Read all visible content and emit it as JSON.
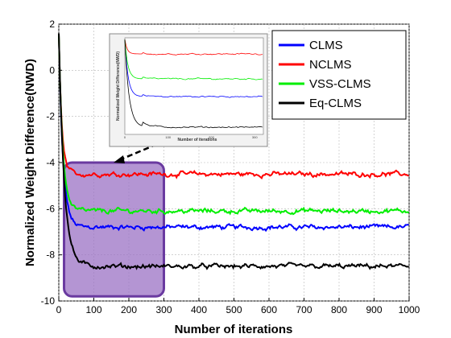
{
  "chart_data": {
    "type": "line",
    "title": "",
    "xlabel": "Number of iterations",
    "ylabel": "Normalized Weight Difference(NWD)",
    "xlim": [
      0,
      1000
    ],
    "ylim": [
      -10,
      2
    ],
    "xticks": [
      0,
      100,
      200,
      300,
      400,
      500,
      600,
      700,
      800,
      900,
      1000
    ],
    "yticks": [
      -10,
      -8,
      -6,
      -4,
      -2,
      0,
      2
    ],
    "grid": true,
    "legend_position": "top-right",
    "series": [
      {
        "name": "CLMS",
        "color": "#0000ff",
        "start": 1.6,
        "steady": -6.8,
        "rate": 0.085
      },
      {
        "name": "NCLMS",
        "color": "#ff0000",
        "start": 1.6,
        "steady": -4.5,
        "rate": 0.12
      },
      {
        "name": "VSS-CLMS",
        "color": "#00ee00",
        "start": 1.6,
        "steady": -6.1,
        "rate": 0.09
      },
      {
        "name": "Eq-CLMS",
        "color": "#000000",
        "start": 1.6,
        "steady": -8.5,
        "rate": 0.065
      }
    ],
    "highlight_box": {
      "x": [
        15,
        300
      ],
      "y": [
        -9.8,
        -4.0
      ],
      "fill": "#9b72c4",
      "stroke": "#6a3aa0"
    },
    "inset": {
      "xlabel": "Number of iterations",
      "ylabel": "Normalized Weight Difference(NWD)",
      "xticks": [
        0,
        100,
        200,
        300
      ]
    }
  }
}
